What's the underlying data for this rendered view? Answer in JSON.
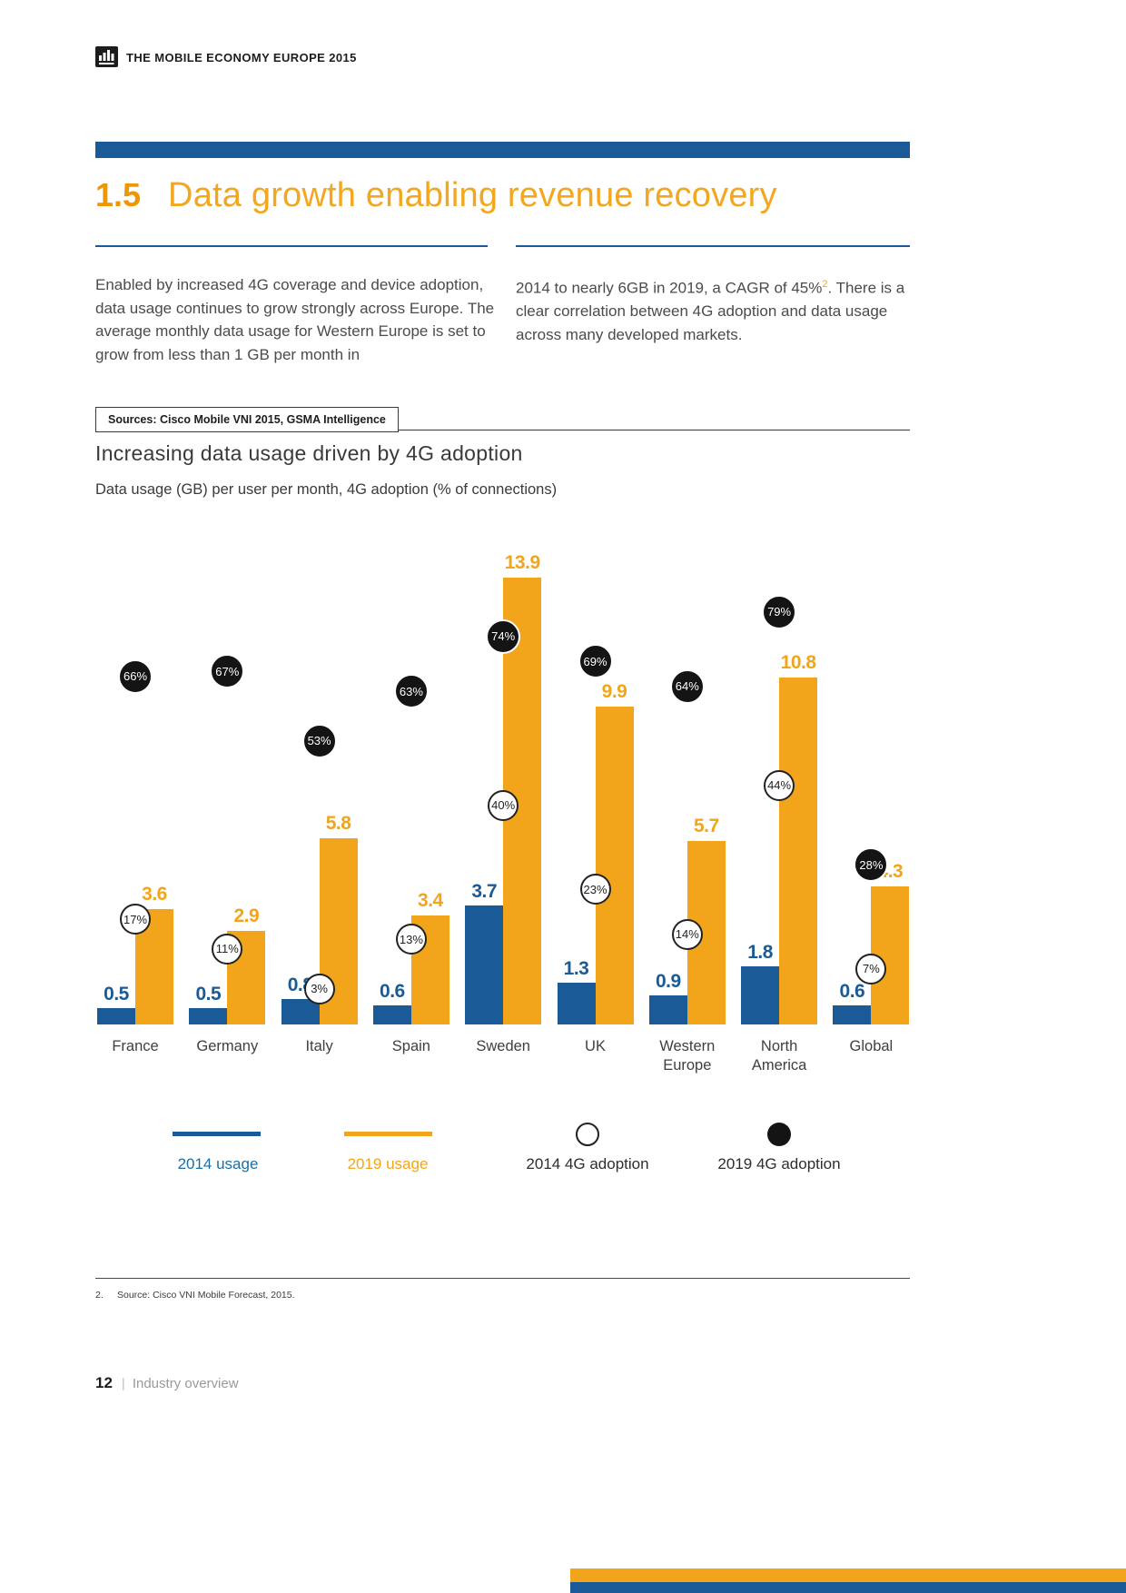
{
  "header": {
    "brand": "THE MOBILE ECONOMY EUROPE 2015"
  },
  "section": {
    "number": "1.5",
    "title": "Data growth enabling revenue recovery"
  },
  "body": {
    "col1": "Enabled by increased 4G coverage and device adoption, data usage continues to grow strongly across Europe. The average monthly data usage for Western Europe is set to grow from less than 1 GB per month in",
    "col2_pre": "2014 to nearly 6GB in 2019, a CAGR of 45%",
    "col2_sup": "2",
    "col2_post": ". There is a clear correlation between 4G adoption and data usage across many developed markets."
  },
  "sources_box": "Sources: Cisco Mobile VNI 2015, GSMA Intelligence",
  "chart_title": "Increasing data usage driven by 4G adoption",
  "chart_subtitle": "Data usage (GB) per user per month, 4G adoption (% of connections)",
  "colors": {
    "blue": "#1a5a96",
    "orange": "#f2a51a",
    "circle_black": "#141414",
    "legend_blue_text": "#1c6ea4",
    "legend_orange_text": "#f2a51a"
  },
  "chart_data": {
    "type": "bar",
    "title": "Increasing data usage driven by 4G adoption",
    "subtitle": "Data usage (GB) per user per month, 4G adoption (% of connections)",
    "categories": [
      "France",
      "Germany",
      "Italy",
      "Spain",
      "Sweden",
      "UK",
      "Western Europe",
      "North America",
      "Global"
    ],
    "series": [
      {
        "name": "2014 usage",
        "color": "#1a5a96",
        "unit": "GB",
        "values": [
          0.5,
          0.5,
          0.8,
          0.6,
          3.7,
          1.3,
          0.9,
          1.8,
          0.6
        ]
      },
      {
        "name": "2019 usage",
        "color": "#f2a51a",
        "unit": "GB",
        "values": [
          3.6,
          2.9,
          5.8,
          3.4,
          13.9,
          9.9,
          5.7,
          10.8,
          4.3
        ]
      }
    ],
    "adoption_series": [
      {
        "name": "2014 4G adoption",
        "style": "open-circle",
        "unit": "%",
        "values": [
          17,
          11,
          3,
          13,
          40,
          23,
          14,
          44,
          7
        ]
      },
      {
        "name": "2019 4G adoption",
        "style": "filled-circle",
        "unit": "%",
        "values": [
          66,
          67,
          53,
          63,
          74,
          69,
          64,
          79,
          28
        ]
      }
    ],
    "ylim_gb": [
      0,
      14
    ],
    "ylim_pct": [
      0,
      100
    ],
    "grid": false,
    "legend_position": "bottom"
  },
  "legend": {
    "items": [
      {
        "label": "2014 usage"
      },
      {
        "label": "2019 usage"
      },
      {
        "label": "2014 4G adoption"
      },
      {
        "label": "2019 4G adoption"
      }
    ]
  },
  "footnote": {
    "num": "2.",
    "text": "Source: Cisco VNI Mobile Forecast, 2015."
  },
  "footer": {
    "page_number": "12",
    "label": "Industry overview"
  }
}
